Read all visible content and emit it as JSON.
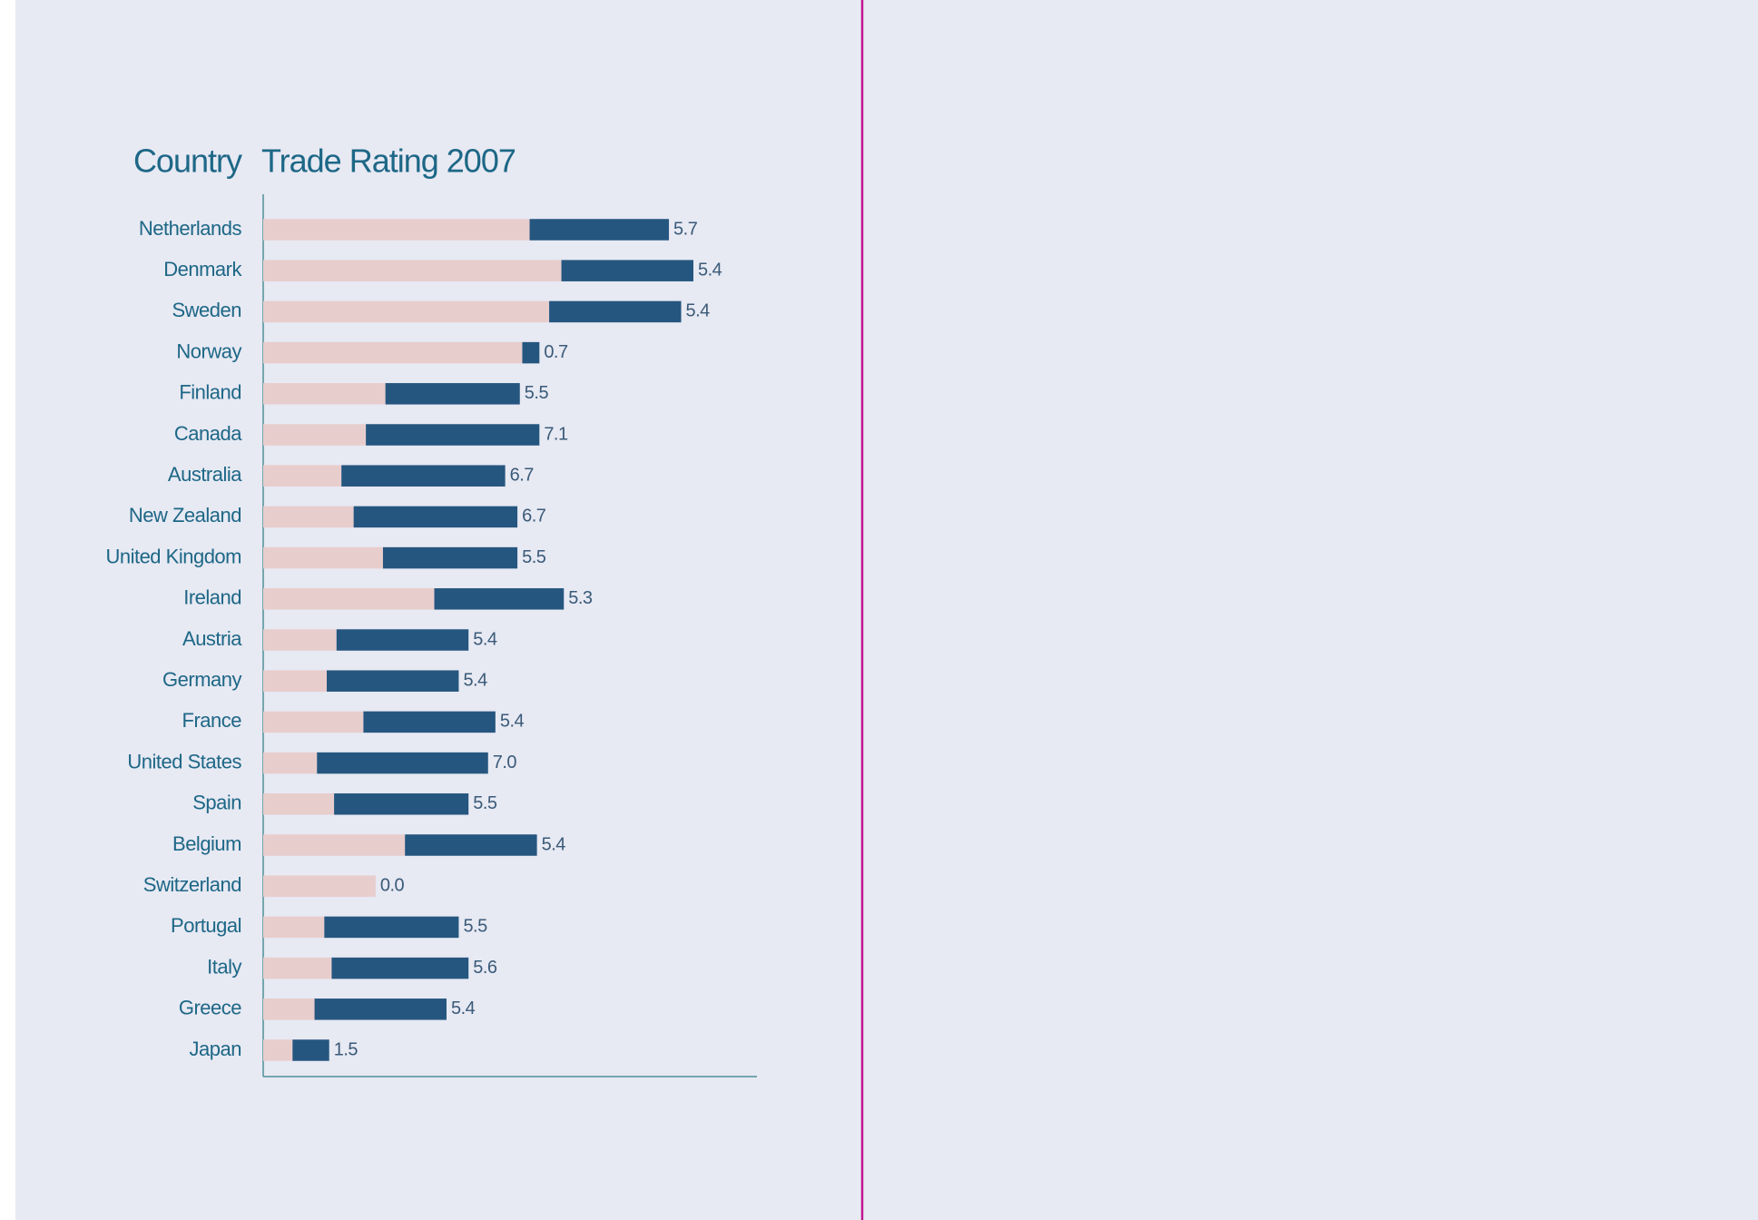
{
  "chart_data": {
    "type": "bar",
    "orientation": "horizontal",
    "stacked": true,
    "titles": [
      "Country",
      "Trade Rating 2007"
    ],
    "categories": [
      "Netherlands",
      "Denmark",
      "Sweden",
      "Norway",
      "Finland",
      "Canada",
      "Australia",
      "New Zealand",
      "United Kingdom",
      "Ireland",
      "Austria",
      "Germany",
      "France",
      "United States",
      "Spain",
      "Belgium",
      "Switzerland",
      "Portugal",
      "Italy",
      "Greece",
      "Japan"
    ],
    "series": [
      {
        "color": "#e8cdcd",
        "values": [
          10.9,
          12.2,
          11.7,
          10.6,
          5.0,
          4.2,
          3.2,
          3.7,
          4.9,
          7.0,
          3.0,
          2.6,
          4.1,
          2.2,
          2.9,
          5.8,
          4.6,
          2.5,
          2.8,
          2.1,
          1.2
        ]
      },
      {
        "color": "#25567f",
        "values": [
          5.7,
          5.4,
          5.4,
          0.7,
          5.5,
          7.1,
          6.7,
          6.7,
          5.5,
          5.3,
          5.4,
          5.4,
          5.4,
          7.0,
          5.5,
          5.4,
          0.0,
          5.5,
          5.6,
          5.4,
          1.5
        ],
        "value_labels": [
          "5.7",
          "5.4",
          "5.4",
          "0.7",
          "5.5",
          "7.1",
          "6.7",
          "6.7",
          "5.5",
          "5.3",
          "5.4",
          "5.4",
          "5.4",
          "7.0",
          "5.5",
          "5.4",
          "0.0",
          "5.5",
          "5.6",
          "5.4",
          "1.5"
        ]
      }
    ],
    "xlim": [
      0,
      20.2
    ]
  }
}
